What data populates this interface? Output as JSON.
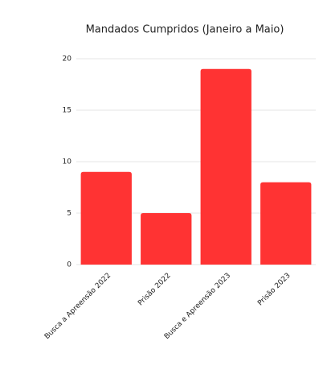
{
  "chart_data": {
    "type": "bar",
    "title": "Mandados Cumpridos (Janeiro a Maio)",
    "categories": [
      "Busca a Apreensão 2022",
      "Prisão 2022",
      "Busca e Apreensão 2023",
      "Prisão 2023"
    ],
    "values": [
      9,
      5,
      19,
      8
    ],
    "color": "#ff3333",
    "ylim": [
      0,
      20
    ],
    "yticks": [
      0,
      5,
      10,
      15,
      20
    ],
    "grid": true
  }
}
